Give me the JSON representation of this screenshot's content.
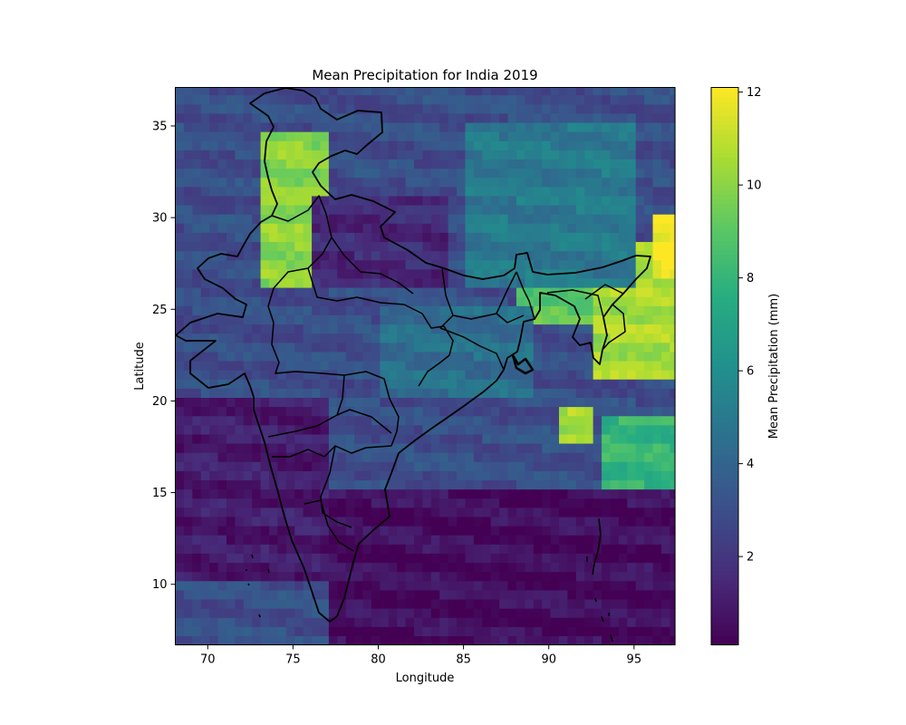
{
  "chart_data": {
    "type": "heatmap",
    "title": "Mean Precipitation for India 2019",
    "xlabel": "Longitude",
    "ylabel": "Latitude",
    "xlim": [
      68.1,
      97.4
    ],
    "ylim": [
      6.7,
      37.1
    ],
    "xticks": [
      70,
      75,
      80,
      85,
      90,
      95
    ],
    "yticks": [
      10,
      15,
      20,
      25,
      30,
      35
    ],
    "grid_resolution_deg": 0.5,
    "grid": false,
    "colormap": "viridis",
    "colorbar": {
      "label": "Mean Precipitation (mm)",
      "range": [
        0.1,
        12.1
      ],
      "ticks": [
        2,
        4,
        6,
        8,
        10,
        12
      ]
    },
    "approximate_precipitation_zones": [
      {
        "lon": [
          73,
          77
        ],
        "lat": [
          26,
          34.5
        ],
        "value": 10
      },
      {
        "lon": [
          88,
          93
        ],
        "lat": [
          24,
          27.5
        ],
        "value": 9
      },
      {
        "lon": [
          92.5,
          97.4
        ],
        "lat": [
          21,
          28.5
        ],
        "value": 10.5
      },
      {
        "lon": [
          96,
          97.4
        ],
        "lat": [
          26.5,
          30
        ],
        "value": 12
      },
      {
        "lon": [
          90.5,
          92.5
        ],
        "lat": [
          17.5,
          19.5
        ],
        "value": 10.5
      },
      {
        "lon": [
          93,
          97.4
        ],
        "lat": [
          15,
          19
        ],
        "value": 8
      },
      {
        "lon": [
          85,
          95
        ],
        "lat": [
          26,
          35
        ],
        "value": 5
      },
      {
        "lon": [
          80,
          89
        ],
        "lat": [
          20,
          25
        ],
        "value": 4.5
      },
      {
        "lon": [
          76,
          84
        ],
        "lat": [
          26,
          31
        ],
        "value": 1.5
      },
      {
        "lon": [
          68.1,
          77
        ],
        "lat": [
          10,
          20
        ],
        "value": 1
      },
      {
        "lon": [
          77,
          97.4
        ],
        "lat": [
          6.7,
          15
        ],
        "value": 0.5
      }
    ]
  }
}
